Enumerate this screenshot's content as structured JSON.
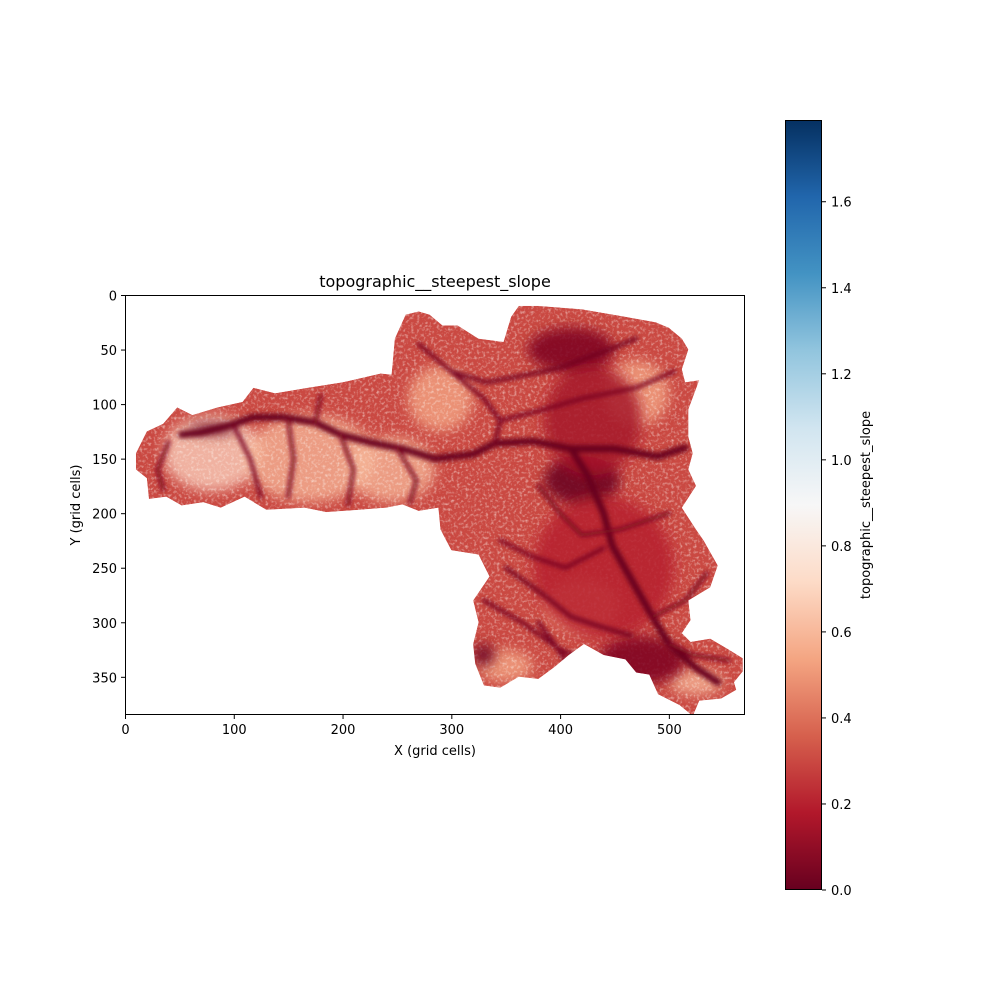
{
  "chart_data": {
    "type": "heatmap",
    "title": "topographic__steepest_slope",
    "xlabel": "X (grid cells)",
    "ylabel": "Y (grid cells)",
    "xlim": [
      0,
      570
    ],
    "ylim": [
      385,
      0
    ],
    "x_ticks": [
      "0",
      "100",
      "200",
      "300",
      "400",
      "500"
    ],
    "x_tick_values": [
      0,
      100,
      200,
      300,
      400,
      500
    ],
    "y_ticks": [
      "0",
      "50",
      "100",
      "150",
      "200",
      "250",
      "300",
      "350"
    ],
    "y_tick_values": [
      0,
      50,
      100,
      150,
      200,
      250,
      300,
      350
    ],
    "colorbar": {
      "label": "topographic__steepest_slope",
      "colormap": "RdBu",
      "range": [
        0.0,
        1.79
      ],
      "tick_labels": [
        "0.0",
        "0.2",
        "0.4",
        "0.6",
        "0.8",
        "1.0",
        "1.2",
        "1.4",
        "1.6"
      ],
      "tick_values": [
        0.0,
        0.2,
        0.4,
        0.6,
        0.8,
        1.0,
        1.2,
        1.4,
        1.6
      ]
    },
    "grid": false,
    "watershed_outline": [
      [
        10,
        145
      ],
      [
        20,
        125
      ],
      [
        35,
        118
      ],
      [
        48,
        103
      ],
      [
        62,
        110
      ],
      [
        85,
        103
      ],
      [
        108,
        98
      ],
      [
        118,
        85
      ],
      [
        138,
        90
      ],
      [
        168,
        85
      ],
      [
        200,
        80
      ],
      [
        235,
        72
      ],
      [
        245,
        73
      ],
      [
        248,
        40
      ],
      [
        258,
        18
      ],
      [
        270,
        15
      ],
      [
        280,
        18
      ],
      [
        292,
        28
      ],
      [
        306,
        28
      ],
      [
        325,
        40
      ],
      [
        348,
        43
      ],
      [
        355,
        20
      ],
      [
        362,
        10
      ],
      [
        380,
        10
      ],
      [
        420,
        13
      ],
      [
        460,
        20
      ],
      [
        488,
        25
      ],
      [
        500,
        30
      ],
      [
        512,
        40
      ],
      [
        518,
        50
      ],
      [
        512,
        68
      ],
      [
        515,
        80
      ],
      [
        528,
        78
      ],
      [
        518,
        105
      ],
      [
        518,
        130
      ],
      [
        522,
        145
      ],
      [
        518,
        160
      ],
      [
        525,
        175
      ],
      [
        512,
        195
      ],
      [
        525,
        215
      ],
      [
        532,
        225
      ],
      [
        545,
        248
      ],
      [
        538,
        268
      ],
      [
        518,
        280
      ],
      [
        520,
        298
      ],
      [
        512,
        310
      ],
      [
        520,
        318
      ],
      [
        538,
        315
      ],
      [
        555,
        325
      ],
      [
        568,
        333
      ],
      [
        568,
        345
      ],
      [
        560,
        355
      ],
      [
        562,
        362
      ],
      [
        548,
        370
      ],
      [
        528,
        372
      ],
      [
        522,
        386
      ],
      [
        510,
        376
      ],
      [
        490,
        366
      ],
      [
        482,
        348
      ],
      [
        470,
        346
      ],
      [
        460,
        334
      ],
      [
        440,
        330
      ],
      [
        422,
        320
      ],
      [
        408,
        330
      ],
      [
        395,
        341
      ],
      [
        380,
        352
      ],
      [
        362,
        350
      ],
      [
        345,
        360
      ],
      [
        330,
        358
      ],
      [
        322,
        338
      ],
      [
        320,
        320
      ],
      [
        325,
        300
      ],
      [
        320,
        280
      ],
      [
        335,
        258
      ],
      [
        325,
        238
      ],
      [
        300,
        234
      ],
      [
        290,
        215
      ],
      [
        288,
        195
      ],
      [
        270,
        198
      ],
      [
        255,
        192
      ],
      [
        240,
        195
      ],
      [
        215,
        197
      ],
      [
        185,
        199
      ],
      [
        165,
        195
      ],
      [
        130,
        197
      ],
      [
        110,
        185
      ],
      [
        88,
        195
      ],
      [
        72,
        190
      ],
      [
        52,
        193
      ],
      [
        38,
        185
      ],
      [
        22,
        187
      ],
      [
        20,
        168
      ],
      [
        10,
        160
      ]
    ],
    "channels": [
      {
        "path": [
          [
            52,
            128
          ],
          [
            70,
            126
          ],
          [
            95,
            120
          ],
          [
            118,
            112
          ],
          [
            145,
            112
          ],
          [
            175,
            117
          ],
          [
            198,
            128
          ],
          [
            225,
            135
          ],
          [
            255,
            141
          ],
          [
            285,
            150
          ],
          [
            320,
            146
          ],
          [
            340,
            136
          ],
          [
            375,
            134
          ],
          [
            410,
            141
          ],
          [
            450,
            141
          ],
          [
            490,
            148
          ],
          [
            515,
            140
          ]
        ],
        "slope": 0.0
      },
      {
        "path": [
          [
            410,
            141
          ],
          [
            425,
            165
          ],
          [
            440,
            200
          ],
          [
            448,
            230
          ],
          [
            465,
            260
          ],
          [
            485,
            295
          ],
          [
            500,
            320
          ],
          [
            525,
            342
          ],
          [
            545,
            355
          ]
        ],
        "slope": 0.0
      },
      {
        "path": [
          [
            300,
            70
          ],
          [
            332,
            80
          ],
          [
            360,
            75
          ],
          [
            385,
            70
          ],
          [
            405,
            65
          ],
          [
            440,
            52
          ],
          [
            470,
            40
          ]
        ],
        "slope": 0.02
      },
      {
        "path": [
          [
            270,
            45
          ],
          [
            300,
            70
          ],
          [
            330,
            95
          ],
          [
            345,
            115
          ],
          [
            340,
            136
          ]
        ],
        "slope": 0.03
      },
      {
        "path": [
          [
            350,
            250
          ],
          [
            385,
            275
          ],
          [
            410,
            295
          ],
          [
            440,
            305
          ],
          [
            465,
            312
          ]
        ],
        "slope": 0.02
      },
      {
        "path": [
          [
            330,
            280
          ],
          [
            365,
            300
          ],
          [
            400,
            325
          ],
          [
            430,
            338
          ]
        ],
        "slope": 0.03
      },
      {
        "path": [
          [
            345,
            225
          ],
          [
            375,
            240
          ],
          [
            405,
            250
          ],
          [
            440,
            232
          ]
        ],
        "slope": 0.04
      },
      {
        "path": [
          [
            380,
            300
          ],
          [
            395,
            320
          ],
          [
            405,
            335
          ]
        ],
        "slope": 0.03
      },
      {
        "path": [
          [
            40,
            135
          ],
          [
            30,
            160
          ],
          [
            35,
            178
          ]
        ],
        "slope": 0.05
      },
      {
        "path": [
          [
            100,
            120
          ],
          [
            115,
            150
          ],
          [
            125,
            185
          ]
        ],
        "slope": 0.04
      },
      {
        "path": [
          [
            150,
            115
          ],
          [
            155,
            150
          ],
          [
            150,
            185
          ]
        ],
        "slope": 0.05
      },
      {
        "path": [
          [
            198,
            128
          ],
          [
            210,
            160
          ],
          [
            205,
            192
          ]
        ],
        "slope": 0.05
      },
      {
        "path": [
          [
            250,
            140
          ],
          [
            268,
            170
          ],
          [
            262,
            190
          ]
        ],
        "slope": 0.05
      },
      {
        "path": [
          [
            175,
            117
          ],
          [
            180,
            92
          ]
        ],
        "slope": 0.06
      },
      {
        "path": [
          [
            345,
            115
          ],
          [
            385,
            105
          ],
          [
            420,
            95
          ],
          [
            470,
            85
          ],
          [
            505,
            70
          ]
        ],
        "slope": 0.04
      },
      {
        "path": [
          [
            380,
            175
          ],
          [
            400,
            200
          ],
          [
            420,
            220
          ],
          [
            455,
            215
          ],
          [
            500,
            200
          ]
        ],
        "slope": 0.05
      },
      {
        "path": [
          [
            485,
            295
          ],
          [
            515,
            280
          ],
          [
            535,
            255
          ]
        ],
        "slope": 0.05
      },
      {
        "path": [
          [
            500,
            320
          ],
          [
            522,
            330
          ],
          [
            555,
            335
          ]
        ],
        "slope": 0.05
      }
    ],
    "low_slope_zones": [
      {
        "x": 420,
        "y": 170,
        "rx": 35,
        "ry": 22,
        "slope": 0.0
      },
      {
        "x": 410,
        "y": 50,
        "rx": 40,
        "ry": 20,
        "slope": 0.05
      },
      {
        "x": 430,
        "y": 115,
        "rx": 45,
        "ry": 50,
        "slope": 0.15
      },
      {
        "x": 440,
        "y": 250,
        "rx": 65,
        "ry": 65,
        "slope": 0.2
      },
      {
        "x": 475,
        "y": 335,
        "rx": 40,
        "ry": 22,
        "slope": 0.05
      },
      {
        "x": 330,
        "y": 330,
        "rx": 10,
        "ry": 10,
        "slope": 0.0
      },
      {
        "x": 80,
        "y": 123,
        "rx": 22,
        "ry": 5,
        "slope": 0.0
      }
    ],
    "high_slope_zones": [
      {
        "x": 80,
        "y": 145,
        "rx": 45,
        "ry": 35,
        "slope": 0.7
      },
      {
        "x": 170,
        "y": 150,
        "rx": 60,
        "ry": 40,
        "slope": 0.6
      },
      {
        "x": 245,
        "y": 160,
        "rx": 40,
        "ry": 30,
        "slope": 0.6
      },
      {
        "x": 290,
        "y": 95,
        "rx": 30,
        "ry": 30,
        "slope": 0.55
      },
      {
        "x": 470,
        "y": 90,
        "rx": 30,
        "ry": 30,
        "slope": 0.55
      },
      {
        "x": 420,
        "y": 285,
        "rx": 35,
        "ry": 25,
        "slope": 0.5
      },
      {
        "x": 350,
        "y": 340,
        "rx": 25,
        "ry": 15,
        "slope": 0.55
      },
      {
        "x": 525,
        "y": 355,
        "rx": 25,
        "ry": 12,
        "slope": 0.6
      }
    ]
  }
}
